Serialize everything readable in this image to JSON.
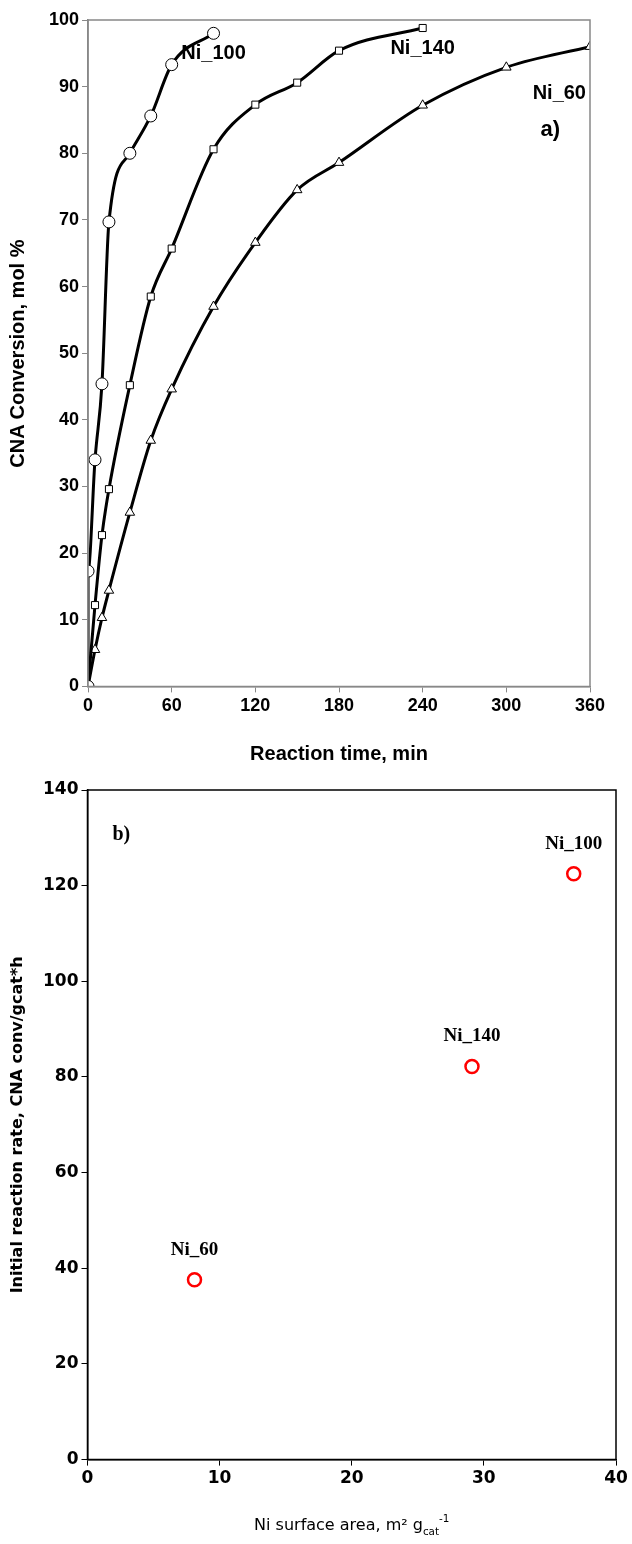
{
  "chart_data": [
    {
      "type": "line",
      "xlabel": "Reaction time, min",
      "ylabel": "CNA Conversion, mol %",
      "annotations": [
        "a)"
      ],
      "xlim": [
        0,
        360
      ],
      "xticks": [
        0,
        60,
        120,
        180,
        240,
        300,
        360
      ],
      "ylim": [
        0,
        100
      ],
      "yticks": [
        0,
        10,
        20,
        30,
        40,
        50,
        60,
        70,
        80,
        90,
        100
      ],
      "legend": false,
      "series": [
        {
          "name": "Ni_100",
          "color": "#000000",
          "marker": "circle",
          "x": [
            0,
            0,
            5,
            10,
            15,
            30,
            45,
            60,
            90
          ],
          "values": [
            0,
            17.3,
            34,
            45.4,
            69.7,
            80,
            85.6,
            93.3,
            98
          ]
        },
        {
          "name": "Ni_140",
          "color": "#000000",
          "marker": "square",
          "x": [
            0,
            5,
            10,
            15,
            30,
            45,
            60,
            90,
            120,
            150,
            180,
            240
          ],
          "values": [
            0,
            12.2,
            22.7,
            29.6,
            45.2,
            58.5,
            65.7,
            80.6,
            87.3,
            90.6,
            95.4,
            98.8
          ]
        },
        {
          "name": "Ni_60",
          "color": "#000000",
          "marker": "triangle",
          "x": [
            0,
            5,
            10,
            15,
            30,
            45,
            60,
            90,
            120,
            150,
            180,
            240,
            300,
            360
          ],
          "values": [
            0,
            5.5,
            10.3,
            14.4,
            26.1,
            36.9,
            44.6,
            57,
            66.6,
            74.5,
            78.6,
            87.2,
            92.9,
            96
          ]
        }
      ]
    },
    {
      "type": "scatter",
      "xlabel": "Ni surface area, m² g$_{cat}$$^{-1}$",
      "ylabel": "Initial reaction rate, CNA conv/gcat*h",
      "annotations": [
        "b)"
      ],
      "xlim": [
        0,
        40
      ],
      "xticks": [
        0,
        10,
        20,
        30,
        40
      ],
      "ylim": [
        0,
        140
      ],
      "yticks": [
        0,
        20,
        40,
        60,
        80,
        100,
        120,
        140
      ],
      "legend": false,
      "marker": "circle",
      "series": [
        {
          "name": "Ni_60",
          "color": "#ff0000",
          "x": [
            8.1
          ],
          "values": [
            37.6
          ]
        },
        {
          "name": "Ni_140",
          "color": "#ff0000",
          "x": [
            29.1
          ],
          "values": [
            82.2
          ]
        },
        {
          "name": "Ni_100",
          "color": "#ff0000",
          "x": [
            36.8
          ],
          "values": [
            122.5
          ]
        }
      ]
    }
  ]
}
